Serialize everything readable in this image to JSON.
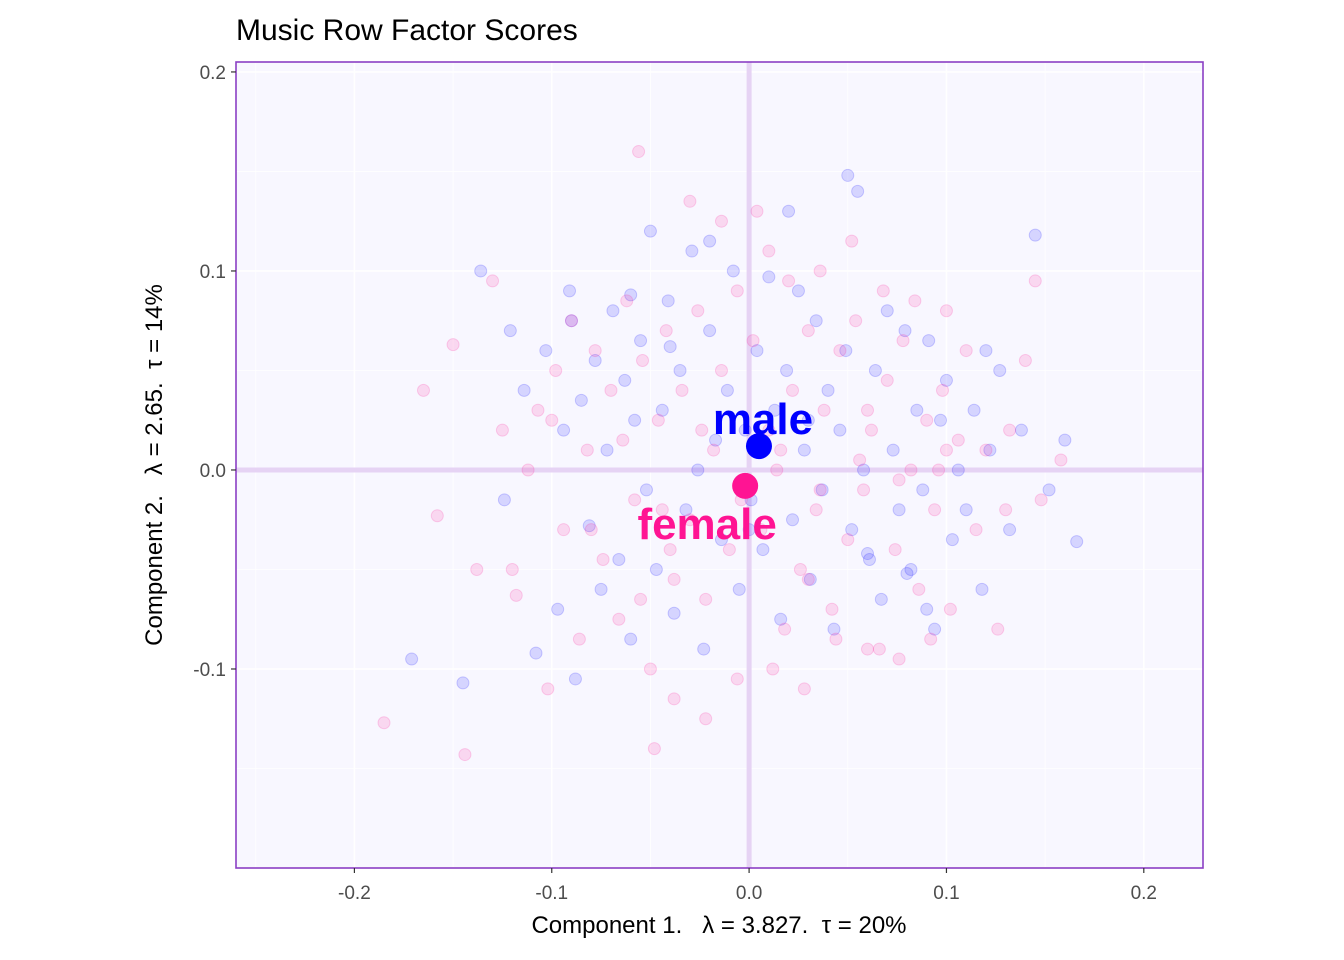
{
  "chart_data": {
    "type": "scatter",
    "title": "Music Row Factor Scores",
    "xlabel": "Component 1.   λ = 3.827.  τ = 20%",
    "ylabel": "Component 2.   λ = 2.65.  τ = 14%",
    "xlim": [
      -0.26,
      0.23
    ],
    "ylim": [
      -0.2,
      0.205
    ],
    "x_ticks": [
      -0.2,
      -0.1,
      0.0,
      0.1,
      0.2
    ],
    "x_tick_labels": [
      "-0.2",
      "-0.1",
      "0.0",
      "0.1",
      "0.2"
    ],
    "y_ticks": [
      -0.1,
      0.0,
      0.1,
      0.2
    ],
    "y_tick_labels": [
      "-0.1",
      "0.0",
      "0.1",
      "0.2"
    ],
    "grid": true,
    "legend": "none",
    "colors": {
      "male": "#0000ff",
      "female": "#ff1493",
      "panel_background": "#f8f7ff",
      "panel_border": "#8b3fc4",
      "origin_lines": "#e6d3f4",
      "grid": "#ffffff"
    },
    "series": [
      {
        "group": "male",
        "color": "#0000ff",
        "x": [
          -0.171,
          -0.145,
          -0.136,
          -0.124,
          -0.121,
          -0.114,
          -0.108,
          -0.103,
          -0.097,
          -0.094,
          -0.091,
          -0.088,
          -0.085,
          -0.081,
          -0.078,
          -0.075,
          -0.072,
          -0.069,
          -0.066,
          -0.063,
          -0.06,
          -0.058,
          -0.055,
          -0.052,
          -0.05,
          -0.047,
          -0.044,
          -0.041,
          -0.038,
          -0.035,
          -0.032,
          -0.029,
          -0.026,
          -0.023,
          -0.02,
          -0.017,
          -0.014,
          -0.011,
          -0.008,
          -0.005,
          -0.002,
          0.001,
          0.004,
          0.007,
          0.01,
          0.013,
          0.016,
          0.019,
          0.022,
          0.025,
          0.028,
          0.031,
          0.034,
          0.037,
          0.04,
          0.043,
          0.046,
          0.049,
          0.052,
          0.055,
          0.058,
          0.061,
          0.064,
          0.067,
          0.07,
          0.073,
          0.076,
          0.079,
          0.082,
          0.085,
          0.088,
          0.091,
          0.094,
          0.097,
          0.1,
          0.103,
          0.106,
          0.11,
          0.114,
          0.118,
          0.122,
          0.127,
          0.132,
          0.138,
          0.145,
          0.152,
          0.16,
          0.166,
          -0.06,
          -0.02,
          0.02,
          0.05,
          0.08,
          -0.09,
          -0.04,
          0.0,
          0.03,
          0.06,
          0.09,
          0.12
        ],
        "y": [
          -0.095,
          -0.107,
          0.1,
          -0.015,
          0.07,
          0.04,
          -0.092,
          0.06,
          -0.07,
          0.02,
          0.09,
          -0.105,
          0.035,
          -0.028,
          0.055,
          -0.06,
          0.01,
          0.08,
          -0.045,
          0.045,
          -0.085,
          0.025,
          0.065,
          -0.01,
          0.12,
          -0.05,
          0.03,
          0.085,
          -0.072,
          0.05,
          -0.02,
          0.11,
          0.0,
          -0.09,
          0.07,
          0.015,
          -0.035,
          0.04,
          0.1,
          -0.06,
          0.02,
          -0.015,
          0.06,
          -0.04,
          0.097,
          0.03,
          -0.075,
          0.05,
          -0.025,
          0.09,
          0.01,
          -0.055,
          0.075,
          -0.01,
          0.04,
          -0.08,
          0.02,
          0.06,
          -0.03,
          0.14,
          0.0,
          -0.045,
          0.05,
          -0.065,
          0.08,
          0.01,
          -0.02,
          0.07,
          -0.05,
          0.03,
          -0.01,
          0.065,
          -0.08,
          0.025,
          0.045,
          -0.035,
          0.0,
          -0.02,
          0.03,
          -0.06,
          0.01,
          0.05,
          -0.03,
          0.02,
          0.118,
          -0.01,
          0.015,
          -0.036,
          0.088,
          0.115,
          0.13,
          0.148,
          -0.052,
          0.075,
          0.062,
          -0.03,
          0.025,
          -0.042,
          -0.07,
          0.06
        ]
      },
      {
        "group": "female",
        "color": "#ff1493",
        "x": [
          -0.185,
          -0.165,
          -0.158,
          -0.15,
          -0.144,
          -0.138,
          -0.13,
          -0.125,
          -0.118,
          -0.112,
          -0.107,
          -0.102,
          -0.098,
          -0.094,
          -0.09,
          -0.086,
          -0.082,
          -0.078,
          -0.074,
          -0.07,
          -0.066,
          -0.062,
          -0.058,
          -0.054,
          -0.05,
          -0.046,
          -0.042,
          -0.038,
          -0.034,
          -0.03,
          -0.026,
          -0.022,
          -0.018,
          -0.014,
          -0.01,
          -0.006,
          -0.002,
          0.002,
          0.006,
          0.01,
          0.014,
          0.018,
          0.022,
          0.026,
          0.03,
          0.034,
          0.038,
          0.042,
          0.046,
          0.05,
          0.054,
          0.058,
          0.062,
          0.066,
          0.07,
          0.074,
          0.078,
          0.082,
          0.086,
          0.09,
          0.094,
          0.098,
          0.102,
          0.106,
          0.11,
          0.115,
          0.12,
          0.126,
          0.132,
          0.14,
          0.148,
          0.158,
          -0.056,
          -0.048,
          -0.038,
          -0.03,
          -0.022,
          -0.014,
          -0.006,
          0.004,
          0.012,
          0.02,
          0.028,
          0.036,
          0.044,
          0.052,
          0.06,
          0.068,
          0.076,
          0.084,
          0.092,
          0.1,
          -0.12,
          -0.1,
          -0.08,
          -0.064,
          -0.044,
          -0.024,
          -0.004,
          0.016,
          0.036,
          0.056,
          0.076,
          0.096,
          0.13,
          0.145,
          -0.055,
          0.01,
          0.06,
          -0.04,
          0.03,
          0.1
        ],
        "y": [
          -0.127,
          0.04,
          -0.023,
          0.063,
          -0.143,
          -0.05,
          0.095,
          0.02,
          -0.063,
          0.0,
          0.03,
          -0.11,
          0.05,
          -0.03,
          0.075,
          -0.085,
          0.01,
          0.06,
          -0.045,
          0.04,
          -0.075,
          0.085,
          -0.015,
          0.055,
          -0.1,
          0.025,
          0.07,
          -0.055,
          0.04,
          -0.025,
          0.08,
          -0.065,
          0.01,
          0.05,
          -0.04,
          0.09,
          -0.01,
          0.065,
          -0.03,
          0.11,
          0.0,
          -0.08,
          0.04,
          -0.05,
          0.07,
          -0.02,
          0.03,
          -0.07,
          0.06,
          -0.035,
          0.075,
          -0.01,
          0.02,
          -0.09,
          0.045,
          -0.04,
          0.065,
          0.0,
          -0.06,
          0.025,
          -0.02,
          0.04,
          -0.07,
          0.015,
          0.06,
          -0.03,
          0.01,
          -0.08,
          0.02,
          0.055,
          -0.015,
          0.005,
          0.16,
          -0.14,
          -0.115,
          0.135,
          -0.125,
          0.125,
          -0.105,
          0.13,
          -0.1,
          0.095,
          -0.11,
          0.1,
          -0.085,
          0.115,
          -0.09,
          0.09,
          -0.095,
          0.085,
          -0.085,
          0.08,
          -0.05,
          0.025,
          -0.03,
          0.015,
          -0.02,
          0.02,
          -0.015,
          0.01,
          -0.01,
          0.005,
          -0.005,
          0.0,
          -0.02,
          0.095,
          -0.065,
          0.02,
          0.03,
          -0.04,
          -0.055,
          0.01
        ]
      }
    ],
    "group_means": [
      {
        "label": "male",
        "x": 0.005,
        "y": 0.012,
        "color": "#0000ff"
      },
      {
        "label": "female",
        "x": -0.002,
        "y": -0.008,
        "color": "#ff1493"
      }
    ]
  }
}
